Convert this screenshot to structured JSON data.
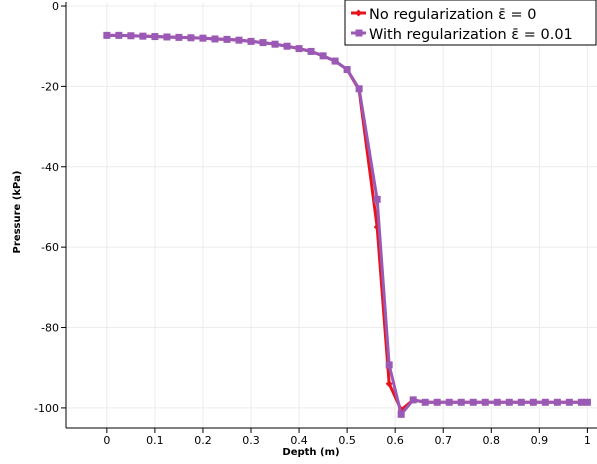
{
  "chart_data": {
    "type": "line",
    "xlabel": "Depth (m)",
    "ylabel": "Pressure (kPa)",
    "xlim": [
      -0.085,
      1.02
    ],
    "ylim": [
      -105,
      1
    ],
    "xticks": [
      0,
      0.1,
      0.2,
      0.3,
      0.4,
      0.5,
      0.6,
      0.7,
      0.8,
      0.9,
      1
    ],
    "xtick_labels": [
      "0",
      "0.1",
      "0.2",
      "0.3",
      "0.4",
      "0.5",
      "0.6",
      "0.7",
      "0.8",
      "0.9",
      "1"
    ],
    "yticks": [
      0,
      -20,
      -40,
      -60,
      -80,
      -100
    ],
    "ytick_labels": [
      "0",
      "-20",
      "-40",
      "-60",
      "-80",
      "-100"
    ],
    "grid": true,
    "legend_position": "top-right",
    "series": [
      {
        "name": "No regularization ε̄ = 0",
        "color": "#e8141c",
        "marker": "diamond",
        "x": [
          0,
          0.025,
          0.05,
          0.075,
          0.1,
          0.125,
          0.15,
          0.175,
          0.2,
          0.225,
          0.25,
          0.275,
          0.3,
          0.325,
          0.35,
          0.375,
          0.4,
          0.425,
          0.45,
          0.475,
          0.5,
          0.525,
          0.5625,
          0.5875,
          0.6125,
          0.6375,
          0.6625,
          0.6875,
          0.7125,
          0.7375,
          0.7625,
          0.7875,
          0.8125,
          0.8375,
          0.8625,
          0.8875,
          0.9125,
          0.9375,
          0.9625,
          0.9875,
          1
        ],
        "y": [
          -7.3,
          -7.3,
          -7.4,
          -7.5,
          -7.6,
          -7.7,
          -7.8,
          -7.9,
          -8.0,
          -8.2,
          -8.3,
          -8.5,
          -8.8,
          -9.1,
          -9.5,
          -10.0,
          -10.6,
          -11.3,
          -12.4,
          -13.7,
          -15.8,
          -20.9,
          -55,
          -94,
          -100.5,
          -98.0,
          -98.6,
          -98.6,
          -98.6,
          -98.6,
          -98.6,
          -98.6,
          -98.6,
          -98.6,
          -98.6,
          -98.6,
          -98.6,
          -98.6,
          -98.6,
          -98.6,
          -98.6
        ]
      },
      {
        "name": "With regularization ε̄ = 0.01",
        "color": "#9b59b6",
        "marker": "square",
        "x": [
          0,
          0.025,
          0.05,
          0.075,
          0.1,
          0.125,
          0.15,
          0.175,
          0.2,
          0.225,
          0.25,
          0.275,
          0.3,
          0.325,
          0.35,
          0.375,
          0.4,
          0.425,
          0.45,
          0.475,
          0.5,
          0.525,
          0.5625,
          0.5875,
          0.6125,
          0.6375,
          0.6625,
          0.6875,
          0.7125,
          0.7375,
          0.7625,
          0.7875,
          0.8125,
          0.8375,
          0.8625,
          0.8875,
          0.9125,
          0.9375,
          0.9625,
          0.9875,
          1
        ],
        "y": [
          -7.3,
          -7.3,
          -7.4,
          -7.5,
          -7.6,
          -7.7,
          -7.8,
          -7.9,
          -8.0,
          -8.2,
          -8.3,
          -8.5,
          -8.8,
          -9.1,
          -9.5,
          -10.0,
          -10.6,
          -11.3,
          -12.4,
          -13.7,
          -15.8,
          -20.6,
          -48.1,
          -89.3,
          -101.6,
          -98.0,
          -98.6,
          -98.6,
          -98.6,
          -98.6,
          -98.6,
          -98.6,
          -98.6,
          -98.6,
          -98.6,
          -98.6,
          -98.6,
          -98.6,
          -98.6,
          -98.6,
          -98.6
        ]
      }
    ]
  }
}
